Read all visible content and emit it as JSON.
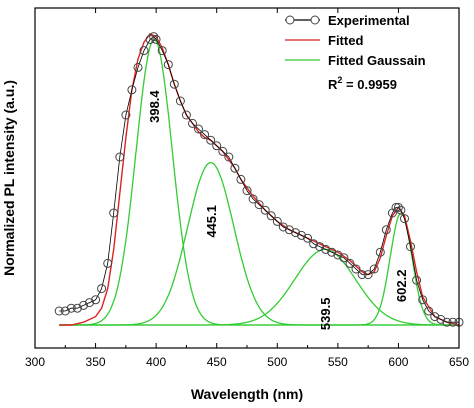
{
  "chart_data": {
    "type": "line",
    "xlabel": "Wavelength (nm)",
    "ylabel": "Normalized PL intensity (a.u.)",
    "xlim": [
      300,
      650
    ],
    "ylim": [
      0,
      1.2
    ],
    "x_ticks": [
      300,
      350,
      400,
      450,
      500,
      550,
      600,
      650
    ],
    "y_ticks_labeled": false,
    "legend": {
      "position": "top-right",
      "entries": [
        {
          "key": "experimental",
          "label": "Experimental",
          "marker": "open-circle-line",
          "color": "#000000"
        },
        {
          "key": "fitted",
          "label": "Fitted",
          "marker": "line",
          "color": "#dd2222"
        },
        {
          "key": "gaussian",
          "label": "Fitted Gaussain",
          "marker": "line",
          "color": "#33cc33"
        }
      ]
    },
    "r2_label": {
      "prefix": "R",
      "sup": "2",
      "value": " = 0.9959"
    },
    "gaussians": [
      {
        "center": 398.4,
        "amplitude": 1.02,
        "sigma": 15,
        "label": "398.4"
      },
      {
        "center": 445.1,
        "amplitude": 0.58,
        "sigma": 19,
        "label": "445.1"
      },
      {
        "center": 539.5,
        "amplitude": 0.27,
        "sigma": 25,
        "label": "539.5"
      },
      {
        "center": 602.2,
        "amplitude": 0.4,
        "sigma": 9,
        "label": "602.2"
      }
    ],
    "experimental": {
      "x": [
        320,
        325,
        330,
        335,
        340,
        345,
        350,
        355,
        360,
        365,
        370,
        375,
        380,
        385,
        390,
        395,
        398,
        400,
        405,
        410,
        415,
        420,
        425,
        430,
        435,
        440,
        445,
        450,
        455,
        460,
        465,
        470,
        475,
        480,
        485,
        490,
        495,
        500,
        505,
        510,
        515,
        520,
        525,
        530,
        535,
        540,
        545,
        550,
        555,
        560,
        565,
        570,
        575,
        580,
        585,
        590,
        595,
        598,
        600,
        602,
        605,
        610,
        615,
        620,
        625,
        630,
        635,
        640,
        645,
        650
      ],
      "y": [
        0.05,
        0.05,
        0.06,
        0.06,
        0.07,
        0.08,
        0.09,
        0.13,
        0.22,
        0.4,
        0.6,
        0.75,
        0.84,
        0.92,
        0.98,
        1.02,
        1.03,
        1.02,
        0.98,
        0.93,
        0.86,
        0.8,
        0.75,
        0.72,
        0.7,
        0.68,
        0.66,
        0.64,
        0.62,
        0.6,
        0.56,
        0.52,
        0.48,
        0.45,
        0.43,
        0.41,
        0.39,
        0.37,
        0.35,
        0.34,
        0.33,
        0.32,
        0.31,
        0.29,
        0.28,
        0.27,
        0.26,
        0.25,
        0.24,
        0.22,
        0.2,
        0.18,
        0.18,
        0.2,
        0.26,
        0.34,
        0.4,
        0.42,
        0.42,
        0.41,
        0.38,
        0.28,
        0.16,
        0.09,
        0.05,
        0.03,
        0.02,
        0.01,
        0.01,
        0.01
      ]
    },
    "fitted": {
      "x": [
        320,
        330,
        340,
        350,
        355,
        360,
        365,
        370,
        375,
        380,
        385,
        390,
        395,
        400,
        405,
        410,
        415,
        420,
        425,
        430,
        435,
        440,
        445,
        450,
        455,
        460,
        465,
        470,
        480,
        490,
        500,
        510,
        520,
        530,
        540,
        550,
        560,
        570,
        575,
        580,
        585,
        590,
        595,
        600,
        605,
        610,
        615,
        620,
        630,
        640,
        650
      ],
      "y": [
        0.0,
        0.0,
        0.01,
        0.03,
        0.06,
        0.13,
        0.27,
        0.47,
        0.67,
        0.84,
        0.95,
        1.01,
        1.04,
        1.03,
        0.99,
        0.93,
        0.86,
        0.8,
        0.75,
        0.72,
        0.69,
        0.67,
        0.66,
        0.64,
        0.62,
        0.59,
        0.56,
        0.52,
        0.46,
        0.41,
        0.37,
        0.34,
        0.32,
        0.3,
        0.28,
        0.26,
        0.23,
        0.19,
        0.18,
        0.19,
        0.24,
        0.32,
        0.39,
        0.42,
        0.39,
        0.3,
        0.19,
        0.1,
        0.03,
        0.01,
        0.0
      ]
    }
  }
}
